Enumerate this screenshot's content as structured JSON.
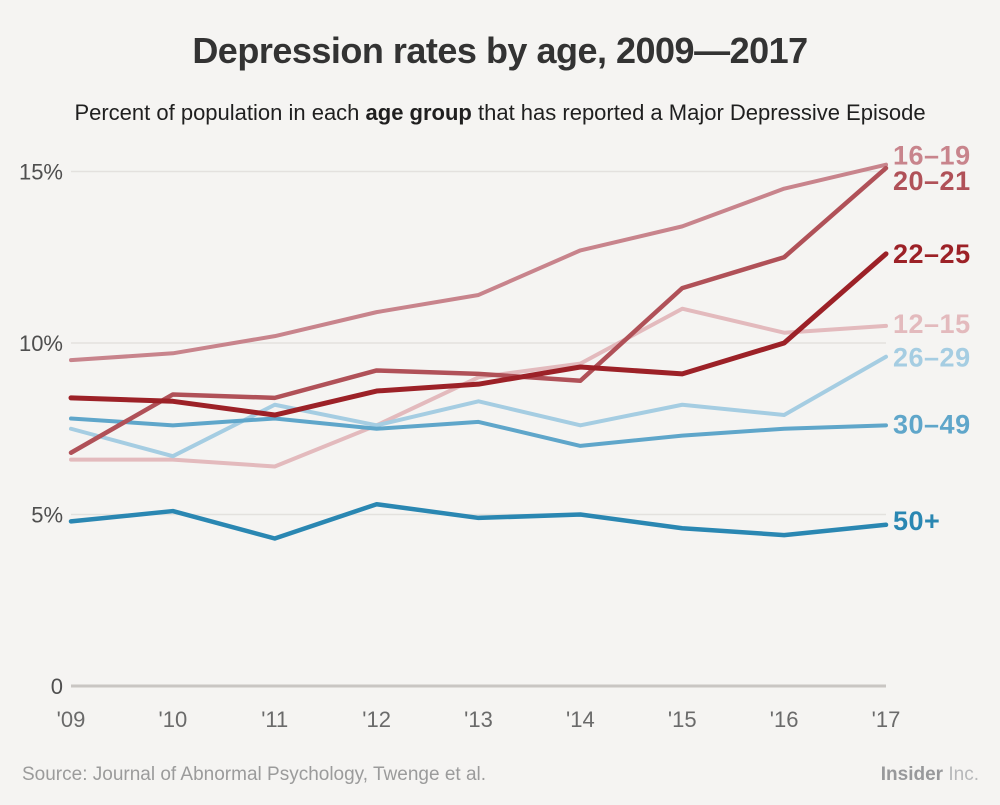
{
  "page": {
    "background": "#f5f4f2"
  },
  "header": {
    "title": "Depression rates by age, 2009—2017",
    "subtitle_prefix": "Percent of population in each ",
    "subtitle_bold": "age group",
    "subtitle_suffix": " that has reported a Major Depressive Episode"
  },
  "footer": {
    "source": "Source: Journal of Abnormal Psychology, Twenge et al.",
    "brand_bold": "Insider",
    "brand_rest": " Inc."
  },
  "chart_data": {
    "type": "line",
    "title": "Depression rates by age, 2009—2017",
    "subtitle": "Percent of population in each age group that has reported a Major Depressive Episode",
    "x_labels": [
      "'09",
      "'10",
      "'11",
      "'12",
      "'13",
      "'14",
      "'15",
      "'16",
      "'17"
    ],
    "ylim": [
      0,
      15.5
    ],
    "grid": "horizontal",
    "legend_position": "right-end-labels",
    "axis_color": "#c9c6c3",
    "grid_color": "#e3e1de",
    "y_tick_color": "#4f4f4f",
    "x_tick_color": "#6a6a6a",
    "y_ticks": [
      {
        "value": 15,
        "label": "15%"
      },
      {
        "value": 10,
        "label": "10%"
      },
      {
        "value": 5,
        "label": "5%"
      },
      {
        "value": 0,
        "label": "0"
      }
    ],
    "series": [
      {
        "name": "12–15",
        "color": "#e3babd",
        "width": 4,
        "label_dy": -2,
        "values": [
          6.6,
          6.6,
          6.4,
          7.6,
          9.0,
          9.4,
          11.0,
          10.3,
          10.5
        ]
      },
      {
        "name": "26–29",
        "color": "#a5cde2",
        "width": 4,
        "label_dy": 1,
        "values": [
          7.5,
          6.7,
          8.2,
          7.6,
          8.3,
          7.6,
          8.2,
          7.9,
          9.6
        ]
      },
      {
        "name": "30–49",
        "color": "#5fa6ca",
        "width": 4,
        "label_dy": -1,
        "values": [
          7.8,
          7.6,
          7.8,
          7.5,
          7.7,
          7.0,
          7.3,
          7.5,
          7.6
        ]
      },
      {
        "name": "16–19",
        "color": "#c8848c",
        "width": 4,
        "label_dy": -9,
        "values": [
          9.5,
          9.7,
          10.2,
          10.9,
          11.4,
          12.7,
          13.4,
          14.5,
          15.2
        ]
      },
      {
        "name": "20–21",
        "color": "#b05158",
        "width": 4.5,
        "label_dy": 13,
        "values": [
          6.8,
          8.5,
          8.4,
          9.2,
          9.1,
          8.9,
          11.6,
          12.5,
          15.1
        ]
      },
      {
        "name": "22–25",
        "color": "#9c2127",
        "width": 5,
        "label_dy": 0,
        "values": [
          8.4,
          8.3,
          7.9,
          8.6,
          8.8,
          9.3,
          9.1,
          10.0,
          12.6
        ]
      },
      {
        "name": "50+",
        "color": "#2a87b2",
        "width": 4.5,
        "label_dy": -4,
        "values": [
          4.8,
          5.1,
          4.3,
          5.3,
          4.9,
          5.0,
          4.6,
          4.4,
          4.7
        ]
      }
    ]
  }
}
